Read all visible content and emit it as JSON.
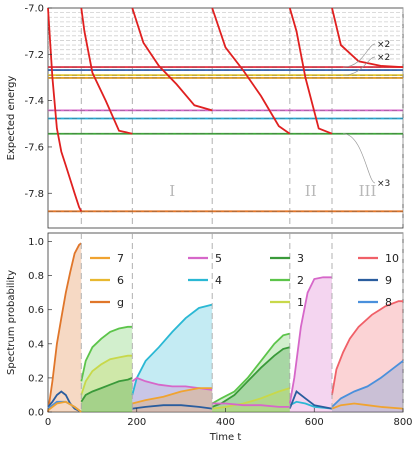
{
  "chart_data": [
    {
      "type": "line",
      "ylabel": "Expected energy",
      "ylim": [
        -7.95,
        -7.0
      ],
      "yticks": [
        -7.0,
        -7.2,
        -7.4,
        -7.6,
        -7.8
      ],
      "ytick_labels": [
        "-7.0",
        "-7.2",
        "-7.4",
        "-7.6",
        "-7.8"
      ],
      "xlim": [
        0,
        800
      ],
      "levels": [
        {
          "energy": -7.878,
          "color": "#e0762a"
        },
        {
          "energy": -7.543,
          "color": "#3fa53a"
        },
        {
          "energy": -7.477,
          "color": "#2aa8d4"
        },
        {
          "energy": -7.442,
          "color": "#d667c9"
        },
        {
          "energy": -7.302,
          "color": "#e0a030"
        },
        {
          "energy": -7.29,
          "color": "#e2c630"
        },
        {
          "energy": -7.268,
          "color": "#3a6bb5"
        },
        {
          "energy": -7.255,
          "color": "#e23c4e"
        }
      ],
      "upper_levels": [
        -7.02,
        -7.04,
        -7.06,
        -7.08,
        -7.1,
        -7.12,
        -7.14,
        -7.16,
        -7.18,
        -7.2,
        -7.22
      ],
      "stage_boundaries": [
        75,
        190,
        370,
        545,
        640,
        800
      ],
      "regions": [
        {
          "label": "I",
          "t": 280
        },
        {
          "label": "II",
          "t": 592
        },
        {
          "label": "III",
          "t": 720
        }
      ],
      "annotations": [
        {
          "text": "×2",
          "energy": -7.255
        },
        {
          "text": "×2",
          "energy": -7.29
        },
        {
          "text": "×3",
          "energy": -7.543
        }
      ],
      "series": [
        {
          "color": "#e02020",
          "x": [
            0,
            10,
            20,
            30,
            40,
            50,
            60,
            70,
            75
          ],
          "y": [
            -7.0,
            -7.3,
            -7.52,
            -7.62,
            -7.68,
            -7.74,
            -7.8,
            -7.86,
            -7.878
          ]
        },
        {
          "color": "#e02020",
          "x": [
            75,
            82,
            100,
            130,
            160,
            190
          ],
          "y": [
            -7.0,
            -7.1,
            -7.28,
            -7.4,
            -7.53,
            -7.543
          ]
        },
        {
          "color": "#e02020",
          "x": [
            190,
            215,
            250,
            290,
            330,
            370
          ],
          "y": [
            -7.0,
            -7.15,
            -7.25,
            -7.33,
            -7.42,
            -7.442
          ]
        },
        {
          "color": "#e02020",
          "x": [
            370,
            400,
            440,
            480,
            520,
            545
          ],
          "y": [
            -7.0,
            -7.17,
            -7.27,
            -7.38,
            -7.51,
            -7.543
          ]
        },
        {
          "color": "#e02020",
          "x": [
            545,
            560,
            580,
            610,
            640
          ],
          "y": [
            -7.0,
            -7.1,
            -7.3,
            -7.52,
            -7.543
          ]
        },
        {
          "color": "#e02020",
          "x": [
            640,
            660,
            700,
            750,
            800
          ],
          "y": [
            -7.0,
            -7.16,
            -7.23,
            -7.25,
            -7.255
          ]
        }
      ]
    },
    {
      "type": "area",
      "xlabel": "Time t",
      "ylabel": "Spectrum probability",
      "ylim": [
        0,
        1.05
      ],
      "yticks": [
        0.0,
        0.2,
        0.4,
        0.6,
        0.8,
        1.0
      ],
      "ytick_labels": [
        "0.0",
        "0.2",
        "0.4",
        "0.6",
        "0.8",
        "1.0"
      ],
      "xlim": [
        0,
        800
      ],
      "xticks": [
        0,
        200,
        400,
        600,
        800
      ],
      "xtick_labels": [
        "0",
        "200",
        "400",
        "600",
        "800"
      ],
      "legend": [
        {
          "name": "7",
          "color": "#f0a330"
        },
        {
          "name": "6",
          "color": "#e8b830"
        },
        {
          "name": "g",
          "color": "#e0762a"
        },
        {
          "name": "5",
          "color": "#d667c9"
        },
        {
          "name": "4",
          "color": "#2ab8d4"
        },
        {
          "name": "3",
          "color": "#3a9a3a"
        },
        {
          "name": "2",
          "color": "#5cc44a"
        },
        {
          "name": "1",
          "color": "#c8d84a"
        },
        {
          "name": "10",
          "color": "#f06068"
        },
        {
          "name": "9",
          "color": "#2a5d9e"
        },
        {
          "name": "8",
          "color": "#4a90dc"
        }
      ],
      "series": [
        {
          "name": "g",
          "color": "#e0762a",
          "fill": true,
          "x": [
            0,
            10,
            20,
            30,
            40,
            50,
            60,
            70,
            75
          ],
          "y": [
            0.0,
            0.18,
            0.4,
            0.55,
            0.7,
            0.82,
            0.93,
            0.98,
            0.99
          ]
        },
        {
          "name": "9",
          "color": "#2a5d9e",
          "fill": false,
          "x": [
            0,
            10,
            20,
            30,
            40,
            50,
            60,
            75
          ],
          "y": [
            0.03,
            0.06,
            0.1,
            0.12,
            0.1,
            0.05,
            0.02,
            0.0
          ]
        },
        {
          "name": "8",
          "color": "#4a90dc",
          "fill": false,
          "x": [
            0,
            20,
            40,
            60,
            75
          ],
          "y": [
            0.02,
            0.06,
            0.06,
            0.03,
            0.0
          ]
        },
        {
          "name": "7",
          "color": "#f0a330",
          "fill": false,
          "x": [
            0,
            20,
            40,
            60,
            75
          ],
          "y": [
            0.01,
            0.05,
            0.06,
            0.03,
            0.0
          ]
        },
        {
          "name": "2",
          "color": "#5cc44a",
          "fill": true,
          "x": [
            75,
            85,
            100,
            120,
            140,
            160,
            180,
            190
          ],
          "y": [
            0.18,
            0.3,
            0.38,
            0.43,
            0.47,
            0.49,
            0.5,
            0.5
          ]
        },
        {
          "name": "1",
          "color": "#c8d84a",
          "fill": true,
          "x": [
            75,
            85,
            100,
            120,
            140,
            160,
            180,
            190
          ],
          "y": [
            0.1,
            0.18,
            0.24,
            0.28,
            0.31,
            0.32,
            0.33,
            0.33
          ]
        },
        {
          "name": "3",
          "color": "#3a9a3a",
          "fill": true,
          "x": [
            75,
            85,
            100,
            120,
            140,
            160,
            180,
            190
          ],
          "y": [
            0.06,
            0.1,
            0.12,
            0.14,
            0.16,
            0.18,
            0.19,
            0.2
          ]
        },
        {
          "name": "4",
          "color": "#2ab8d4",
          "fill": true,
          "x": [
            190,
            200,
            220,
            250,
            280,
            310,
            340,
            370
          ],
          "y": [
            0.1,
            0.2,
            0.3,
            0.38,
            0.47,
            0.55,
            0.61,
            0.63
          ]
        },
        {
          "name": "5",
          "color": "#d667c9",
          "fill": true,
          "x": [
            190,
            200,
            220,
            250,
            280,
            310,
            340,
            370
          ],
          "y": [
            0.18,
            0.2,
            0.18,
            0.16,
            0.15,
            0.15,
            0.14,
            0.13
          ]
        },
        {
          "name": "7",
          "color": "#f0a330",
          "fill": true,
          "x": [
            190,
            220,
            260,
            300,
            340,
            370
          ],
          "y": [
            0.05,
            0.07,
            0.09,
            0.12,
            0.14,
            0.14
          ]
        },
        {
          "name": "9",
          "color": "#2a5d9e",
          "fill": false,
          "x": [
            190,
            220,
            260,
            300,
            340,
            370
          ],
          "y": [
            0.02,
            0.03,
            0.04,
            0.04,
            0.03,
            0.02
          ]
        },
        {
          "name": "2",
          "color": "#5cc44a",
          "fill": true,
          "x": [
            370,
            390,
            420,
            450,
            480,
            510,
            530,
            545
          ],
          "y": [
            0.05,
            0.08,
            0.12,
            0.2,
            0.3,
            0.4,
            0.45,
            0.46
          ]
        },
        {
          "name": "3",
          "color": "#3a9a3a",
          "fill": true,
          "x": [
            370,
            390,
            420,
            450,
            480,
            510,
            530,
            545
          ],
          "y": [
            0.03,
            0.05,
            0.1,
            0.18,
            0.26,
            0.33,
            0.37,
            0.38
          ]
        },
        {
          "name": "1",
          "color": "#c8d84a",
          "fill": true,
          "x": [
            370,
            400,
            440,
            480,
            520,
            545
          ],
          "y": [
            0.02,
            0.03,
            0.05,
            0.08,
            0.12,
            0.14
          ]
        },
        {
          "name": "5",
          "color": "#d667c9",
          "fill": false,
          "x": [
            370,
            400,
            440,
            480,
            520,
            545
          ],
          "y": [
            0.05,
            0.05,
            0.04,
            0.04,
            0.03,
            0.03
          ]
        },
        {
          "name": "5",
          "color": "#d667c9",
          "fill": true,
          "x": [
            545,
            555,
            570,
            585,
            600,
            620,
            640
          ],
          "y": [
            0.05,
            0.2,
            0.5,
            0.7,
            0.78,
            0.79,
            0.79
          ]
        },
        {
          "name": "4",
          "color": "#2ab8d4",
          "fill": false,
          "x": [
            545,
            560,
            580,
            600,
            640
          ],
          "y": [
            0.04,
            0.06,
            0.05,
            0.03,
            0.02
          ]
        },
        {
          "name": "9",
          "color": "#2a5d9e",
          "fill": false,
          "x": [
            545,
            560,
            580,
            600,
            640
          ],
          "y": [
            0.02,
            0.12,
            0.08,
            0.04,
            0.02
          ]
        },
        {
          "name": "10",
          "color": "#f06068",
          "fill": true,
          "x": [
            640,
            650,
            665,
            680,
            700,
            730,
            760,
            790,
            800
          ],
          "y": [
            0.1,
            0.25,
            0.35,
            0.43,
            0.5,
            0.57,
            0.62,
            0.65,
            0.65
          ]
        },
        {
          "name": "8",
          "color": "#4a90dc",
          "fill": true,
          "x": [
            640,
            660,
            690,
            720,
            750,
            780,
            800
          ],
          "y": [
            0.03,
            0.08,
            0.12,
            0.15,
            0.2,
            0.26,
            0.3
          ]
        },
        {
          "name": "7",
          "color": "#f0a330",
          "fill": false,
          "x": [
            640,
            660,
            690,
            720,
            750,
            800
          ],
          "y": [
            0.02,
            0.04,
            0.05,
            0.04,
            0.03,
            0.02
          ]
        }
      ],
      "stage_boundaries": [
        75,
        190,
        370,
        545,
        640,
        800
      ]
    }
  ]
}
